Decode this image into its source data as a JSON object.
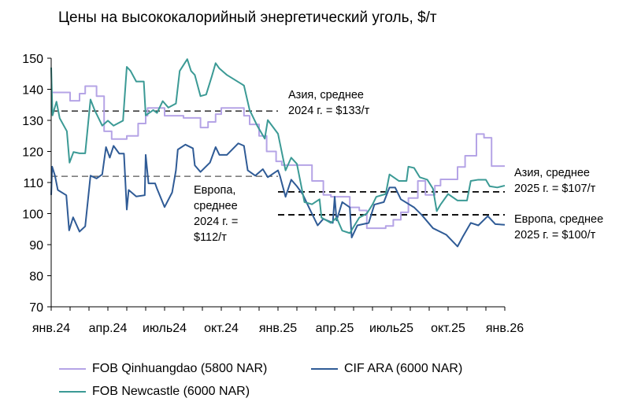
{
  "chart_data": {
    "type": "line",
    "title": "Цены на высококалорийный энергетический уголь, $/т",
    "xlabel": "",
    "ylabel": "",
    "ylim": [
      70,
      150
    ],
    "yticks": [
      70,
      80,
      90,
      100,
      110,
      120,
      130,
      140,
      150
    ],
    "xlim_months": [
      0,
      24
    ],
    "xtick_labels": [
      "янв.24",
      "апр.24",
      "июль24",
      "окт.24",
      "янв.25",
      "апр.25",
      "июль25",
      "окт.25",
      "янв.26"
    ],
    "x_unit": "months since Jan 2024",
    "series": [
      {
        "name": "FOB Qinhuangdao (5800 NAR)",
        "color": "#b5a4e6",
        "step": true,
        "points": [
          [
            0,
            139
          ],
          [
            1,
            136.3
          ],
          [
            1.5,
            138.6
          ],
          [
            1.8,
            141
          ],
          [
            2.4,
            137.8
          ],
          [
            2.8,
            126.5
          ],
          [
            3.2,
            124
          ],
          [
            4,
            125
          ],
          [
            4.6,
            129
          ],
          [
            5,
            131.5
          ],
          [
            5.1,
            134
          ],
          [
            6,
            131.5
          ],
          [
            7,
            130.8
          ],
          [
            7.9,
            127.7
          ],
          [
            8.3,
            129.5
          ],
          [
            8.7,
            132
          ],
          [
            9,
            134
          ],
          [
            10.2,
            131.5
          ],
          [
            10.5,
            128.7
          ],
          [
            11,
            125
          ],
          [
            11.4,
            120
          ],
          [
            11.9,
            116.8
          ],
          [
            12.2,
            115.6
          ],
          [
            13.8,
            110.5
          ],
          [
            14.4,
            106
          ],
          [
            14.8,
            105.4
          ],
          [
            15.8,
            102
          ],
          [
            16.3,
            101
          ],
          [
            16.7,
            95.3
          ],
          [
            17.7,
            96
          ],
          [
            18.1,
            98
          ],
          [
            18.5,
            100.4
          ],
          [
            18.9,
            105
          ],
          [
            19.4,
            110.5
          ],
          [
            19.8,
            106
          ],
          [
            20.3,
            109
          ],
          [
            20.6,
            111
          ],
          [
            21.5,
            115
          ],
          [
            21.9,
            118.6
          ],
          [
            22.5,
            125.6
          ],
          [
            22.9,
            124.4
          ],
          [
            23.3,
            115.3
          ],
          [
            24,
            115.3
          ]
        ]
      },
      {
        "name": "CIF ARA (6000 NAR)",
        "color": "#2f5b96",
        "points": [
          [
            0,
            106
          ],
          [
            0.05,
            115.1
          ],
          [
            0.2,
            112.2
          ],
          [
            0.35,
            107.6
          ],
          [
            0.8,
            105.9
          ],
          [
            0.95,
            94.6
          ],
          [
            1.16,
            98.8
          ],
          [
            1.5,
            94.2
          ],
          [
            1.8,
            95.9
          ],
          [
            2.08,
            112.2
          ],
          [
            2.4,
            111.3
          ],
          [
            2.7,
            112.6
          ],
          [
            2.9,
            121.4
          ],
          [
            3.1,
            118
          ],
          [
            3.3,
            121.8
          ],
          [
            3.6,
            119.3
          ],
          [
            3.85,
            119.3
          ],
          [
            4.0,
            101.3
          ],
          [
            4.1,
            107.6
          ],
          [
            4.5,
            105.5
          ],
          [
            4.95,
            105.9
          ],
          [
            5.0,
            118.9
          ],
          [
            5.15,
            109.7
          ],
          [
            5.5,
            109.7
          ],
          [
            5.6,
            108
          ],
          [
            6.0,
            102.1
          ],
          [
            6.4,
            106.8
          ],
          [
            6.6,
            113.9
          ],
          [
            6.7,
            120.6
          ],
          [
            7.1,
            122.2
          ],
          [
            7.5,
            121
          ],
          [
            7.6,
            115.5
          ],
          [
            7.9,
            113.4
          ],
          [
            8.4,
            116.4
          ],
          [
            8.7,
            121.4
          ],
          [
            8.9,
            118.9
          ],
          [
            9.3,
            118.9
          ],
          [
            9.9,
            122.6
          ],
          [
            10.2,
            121.8
          ],
          [
            10.4,
            113.9
          ],
          [
            10.8,
            112.2
          ],
          [
            11.2,
            114.3
          ],
          [
            11.46,
            111.7
          ],
          [
            12.0,
            113.9
          ],
          [
            12.1,
            112.2
          ],
          [
            12.4,
            105.4
          ],
          [
            12.7,
            110.9
          ],
          [
            13.0,
            108.8
          ],
          [
            13.3,
            106.3
          ],
          [
            13.7,
            101.2
          ],
          [
            14.1,
            96.2
          ],
          [
            14.4,
            98.3
          ],
          [
            14.9,
            97
          ],
          [
            15.0,
            105.4
          ],
          [
            15.1,
            97.8
          ],
          [
            15.4,
            103.7
          ],
          [
            15.8,
            102
          ],
          [
            15.9,
            92.3
          ],
          [
            16.2,
            96.2
          ],
          [
            16.8,
            97
          ],
          [
            17.1,
            102.9
          ],
          [
            17.6,
            103.7
          ],
          [
            17.9,
            108.4
          ],
          [
            18.2,
            108.4
          ],
          [
            18.5,
            104.6
          ],
          [
            19.2,
            102
          ],
          [
            19.6,
            99.6
          ],
          [
            20.2,
            95.3
          ],
          [
            20.9,
            93.2
          ],
          [
            21.5,
            89.4
          ],
          [
            21.8,
            92.8
          ],
          [
            22.2,
            97
          ],
          [
            22.6,
            96.2
          ],
          [
            23.1,
            99.2
          ],
          [
            23.5,
            96.6
          ],
          [
            24,
            96.4
          ]
        ]
      },
      {
        "name": "FOB Newcastle (6000 NAR)",
        "color": "#3b9a95",
        "points": [
          [
            0,
            147
          ],
          [
            0.07,
            131.6
          ],
          [
            0.28,
            136
          ],
          [
            0.45,
            130.7
          ],
          [
            0.83,
            126.5
          ],
          [
            0.97,
            116.4
          ],
          [
            1.18,
            119.8
          ],
          [
            1.5,
            119.4
          ],
          [
            1.8,
            119.4
          ],
          [
            2.08,
            136.7
          ],
          [
            2.3,
            133.3
          ],
          [
            2.7,
            128.3
          ],
          [
            3.0,
            129.9
          ],
          [
            3.3,
            128.3
          ],
          [
            3.8,
            129.9
          ],
          [
            4.0,
            147.2
          ],
          [
            4.2,
            145.9
          ],
          [
            4.5,
            142.5
          ],
          [
            4.9,
            142.5
          ],
          [
            5.0,
            131.6
          ],
          [
            5.4,
            133.3
          ],
          [
            5.6,
            132.4
          ],
          [
            5.9,
            136.2
          ],
          [
            6.2,
            134.1
          ],
          [
            6.6,
            135.4
          ],
          [
            6.8,
            145.9
          ],
          [
            7.2,
            149.7
          ],
          [
            7.4,
            145.9
          ],
          [
            7.6,
            144.6
          ],
          [
            7.9,
            137.8
          ],
          [
            8.2,
            138.3
          ],
          [
            8.5,
            144.2
          ],
          [
            8.7,
            148.4
          ],
          [
            8.9,
            146.7
          ],
          [
            9.3,
            144.6
          ],
          [
            10.1,
            141.6
          ],
          [
            10.2,
            141.2
          ],
          [
            10.5,
            133.3
          ],
          [
            10.9,
            128.3
          ],
          [
            11.3,
            124.1
          ],
          [
            11.46,
            130.1
          ],
          [
            12.0,
            125.7
          ],
          [
            12.4,
            113.9
          ],
          [
            12.7,
            118
          ],
          [
            13.0,
            116
          ],
          [
            13.4,
            103.7
          ],
          [
            13.8,
            103
          ],
          [
            14.2,
            104.6
          ],
          [
            14.3,
            98.7
          ],
          [
            14.8,
            97
          ],
          [
            15.1,
            98.7
          ],
          [
            15.4,
            94.5
          ],
          [
            15.8,
            93.7
          ],
          [
            16.3,
            98.7
          ],
          [
            16.7,
            100
          ],
          [
            17.0,
            102.9
          ],
          [
            17.2,
            105.4
          ],
          [
            17.7,
            106.3
          ],
          [
            17.9,
            112.6
          ],
          [
            18.4,
            110.5
          ],
          [
            18.8,
            110.5
          ],
          [
            18.9,
            115.1
          ],
          [
            19.2,
            114.7
          ],
          [
            19.5,
            111.7
          ],
          [
            19.9,
            110.9
          ],
          [
            20.2,
            108
          ],
          [
            20.4,
            100.8
          ],
          [
            20.6,
            102.9
          ],
          [
            21.0,
            106.3
          ],
          [
            21.5,
            104.2
          ],
          [
            22.0,
            104.2
          ],
          [
            22.2,
            110.5
          ],
          [
            22.6,
            110.9
          ],
          [
            23.0,
            110.9
          ],
          [
            23.2,
            108.8
          ],
          [
            23.6,
            108.4
          ],
          [
            24,
            109
          ]
        ]
      }
    ],
    "reference_lines": [
      {
        "label": "Азия, среднее 2024 г. = $133/т",
        "value": 133,
        "from": 0,
        "to": 12,
        "color": "#000"
      },
      {
        "label": "Европа, среднее 2024 г. = $112/т",
        "value": 112,
        "from": 0,
        "to": 12,
        "color": "#555"
      },
      {
        "label": "Азия, среднее 2025 г. = $107/т",
        "value": 107,
        "from": 12,
        "to": 24,
        "color": "#000"
      },
      {
        "label": "Европа, среднее 2025 г. = $100/т",
        "value": 99.6,
        "from": 12,
        "to": 24,
        "color": "#000"
      }
    ],
    "annotations": {
      "asia2024": [
        "Азия, среднее",
        "2024 г. = $133/т"
      ],
      "europe2024": [
        "Европа,",
        "среднее",
        "2024 г. =",
        "$112/т"
      ],
      "asia2025": [
        "Азия, среднее",
        "2025 г. = $107/т"
      ],
      "europe2025": [
        "Европа, среднее",
        "2025 г. = $100/т"
      ]
    },
    "legend": "bottom"
  }
}
